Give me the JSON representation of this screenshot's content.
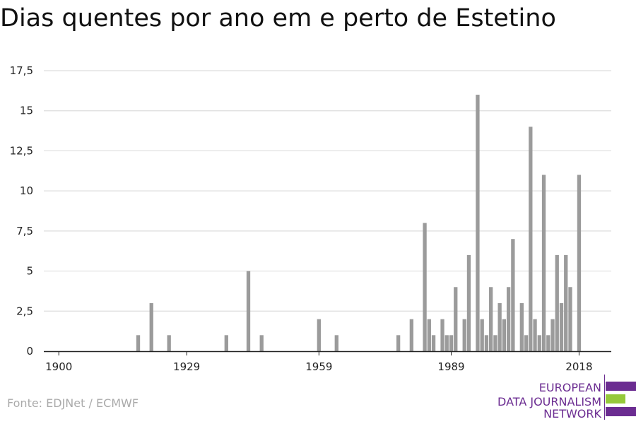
{
  "title": "Dias quentes por ano em e perto de Estetino",
  "source": "Fonte: EDJNet / ECMWF",
  "logo": {
    "lines": [
      "EUROPEAN",
      "DATA JOURNALISM",
      "NETWORK"
    ],
    "colors": [
      "#6b2c91",
      "#95c83a",
      "#6b2c91"
    ]
  },
  "colors": {
    "bar": "#9b9b9b",
    "grid": "#dddddd",
    "axis": "#222222",
    "text": "#222222"
  },
  "chart_data": {
    "type": "bar",
    "title": "Dias quentes por ano em e perto de Estetino",
    "xlabel": "",
    "ylabel": "",
    "x_ticks": [
      1900,
      1929,
      1959,
      1989,
      2018
    ],
    "y_ticks": [
      0,
      2.5,
      5,
      7.5,
      10,
      12.5,
      15,
      17.5
    ],
    "y_tick_labels": [
      "0",
      "2,5",
      "5",
      "7,5",
      "10",
      "12,5",
      "15",
      "17,5"
    ],
    "xlim": [
      1900,
      2018
    ],
    "ylim": [
      0,
      17.5
    ],
    "grid": true,
    "x": [
      1918,
      1921,
      1925,
      1938,
      1943,
      1946,
      1959,
      1963,
      1977,
      1980,
      1983,
      1984,
      1985,
      1987,
      1988,
      1989,
      1990,
      1992,
      1993,
      1995,
      1996,
      1997,
      1998,
      1999,
      2000,
      2001,
      2002,
      2003,
      2005,
      2006,
      2007,
      2008,
      2009,
      2010,
      2011,
      2012,
      2013,
      2014,
      2015,
      2016,
      2018
    ],
    "values": [
      1,
      3,
      1,
      1,
      5,
      1,
      2,
      1,
      1,
      2,
      8,
      2,
      1,
      2,
      1,
      1,
      4,
      2,
      6,
      16,
      2,
      1,
      4,
      1,
      3,
      2,
      4,
      7,
      3,
      1,
      14,
      2,
      1,
      11,
      1,
      2,
      6,
      3,
      6,
      4,
      11
    ]
  }
}
